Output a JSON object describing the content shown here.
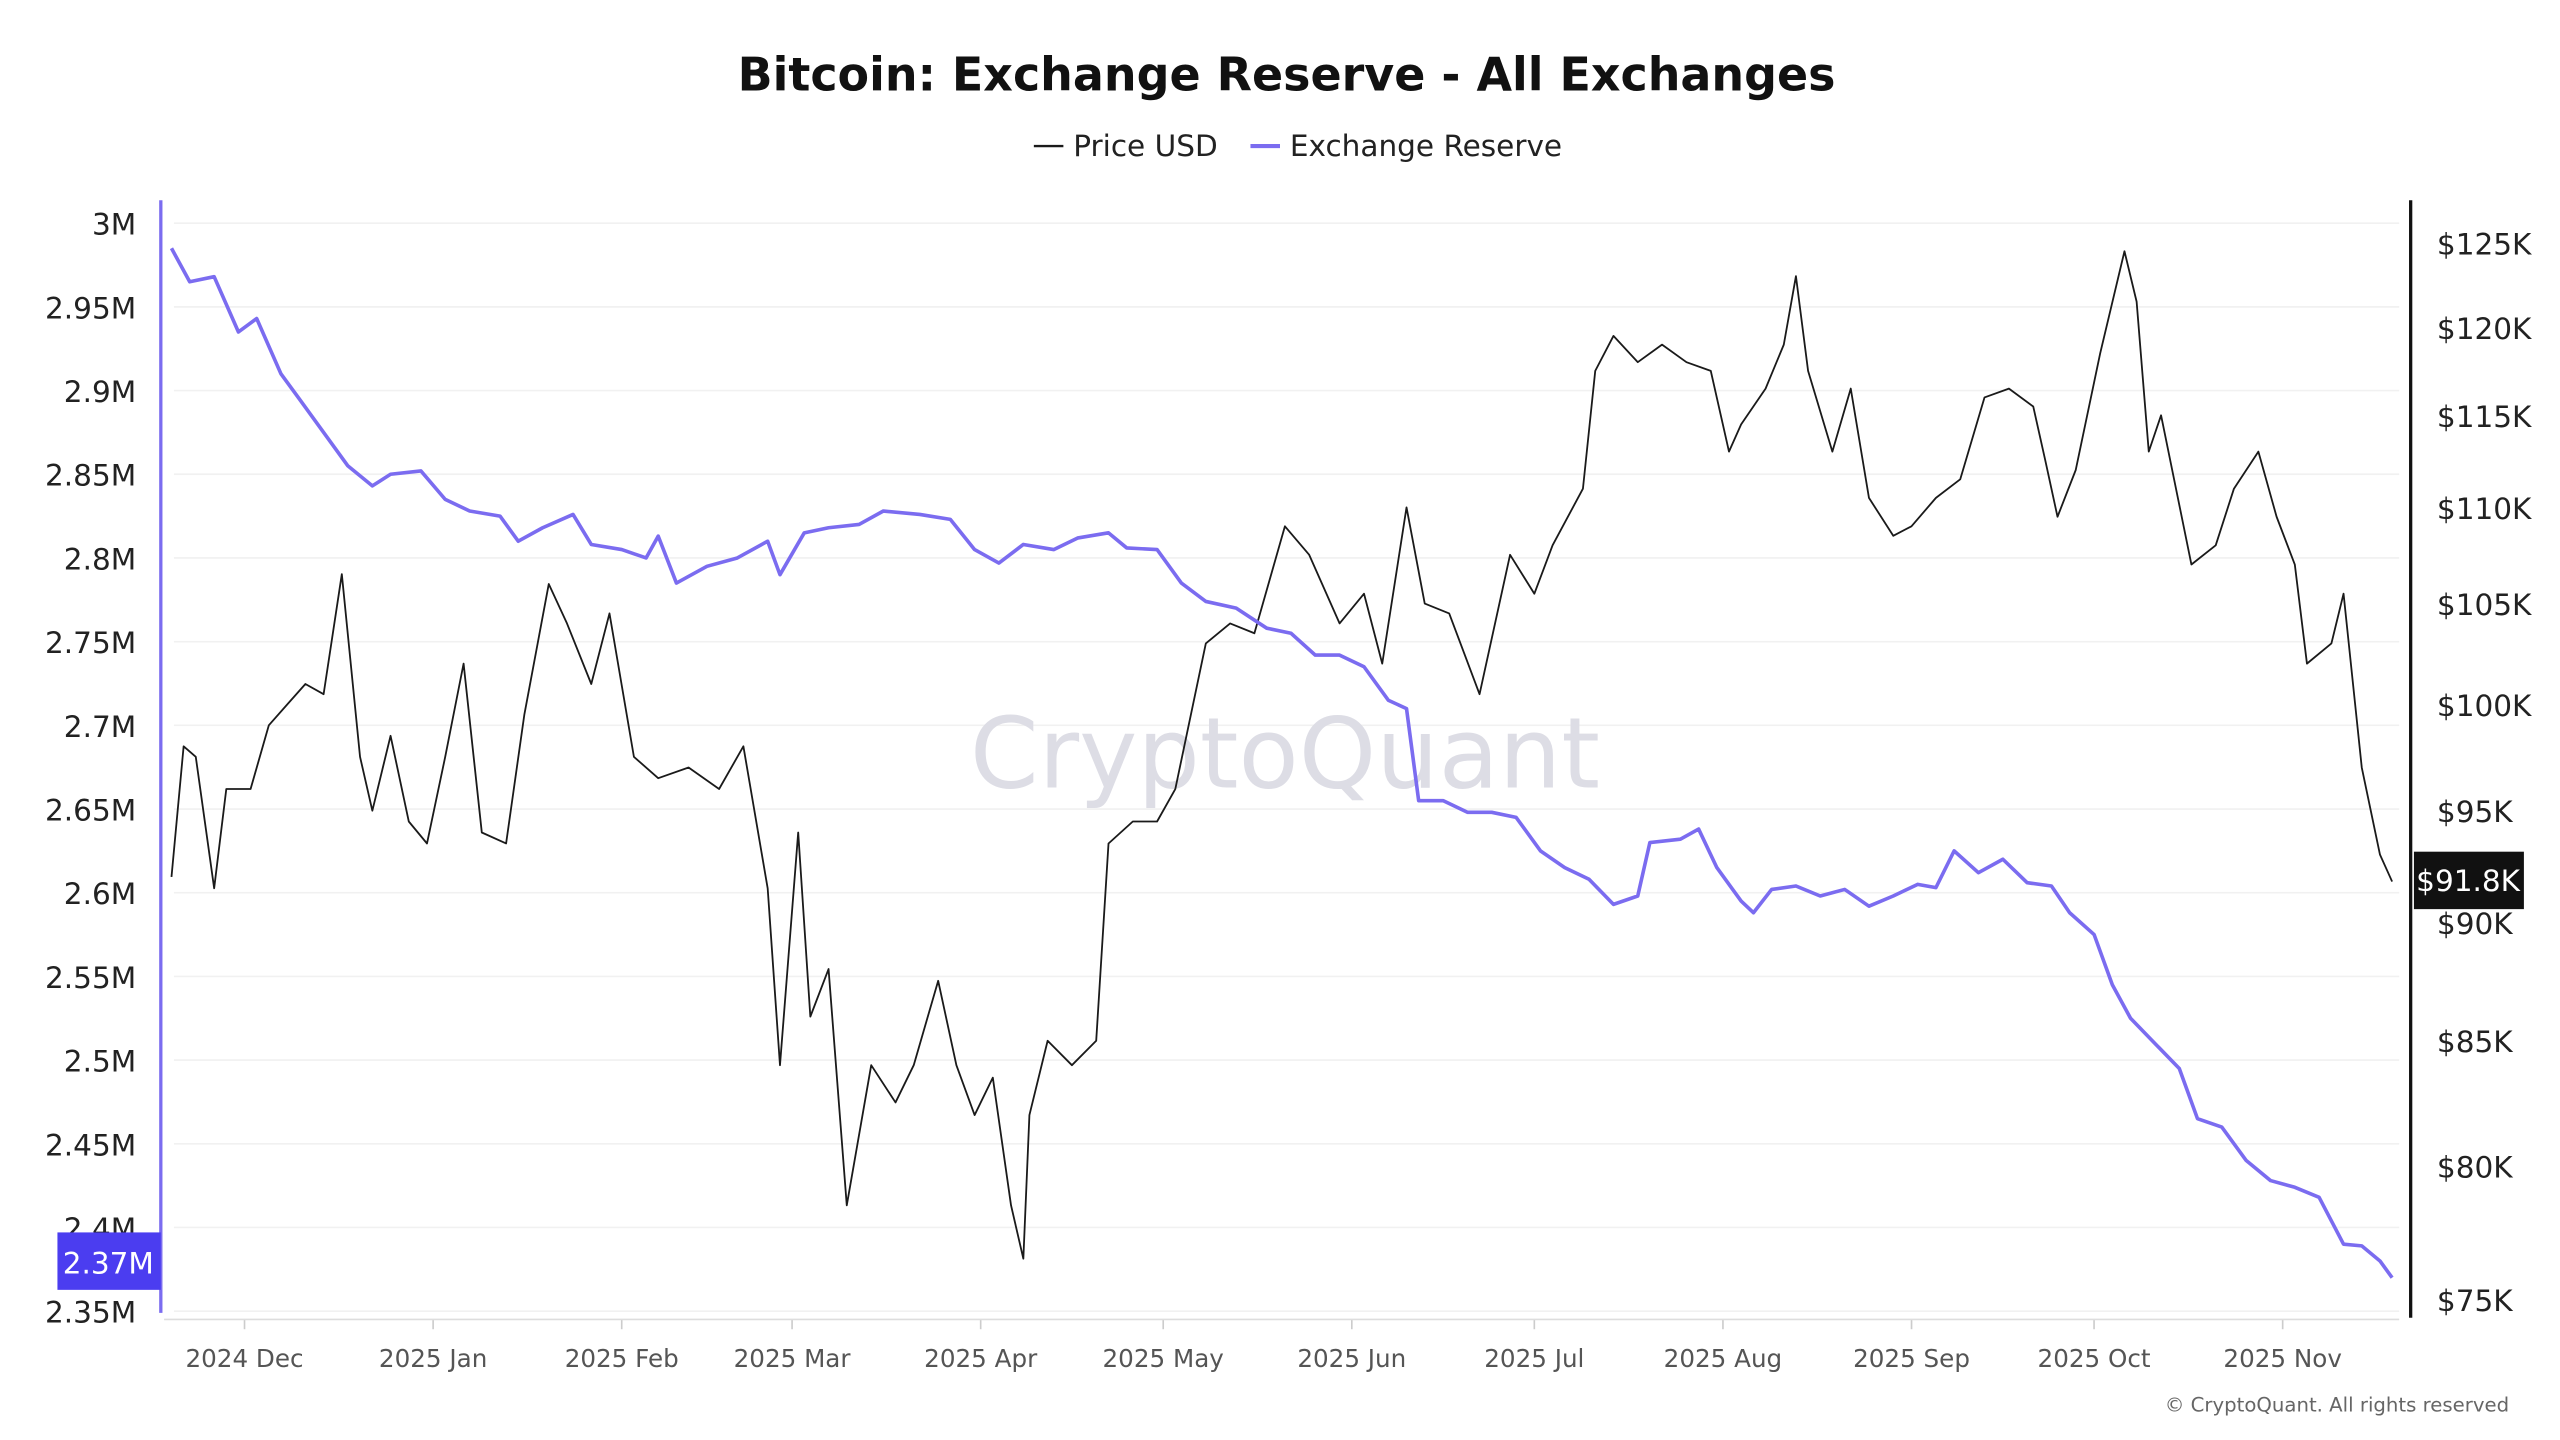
{
  "chart_data": {
    "type": "line",
    "title": "Bitcoin: Exchange Reserve - All Exchanges",
    "legend": {
      "placement": "top-center",
      "entries": [
        "Price USD",
        "Exchange Reserve"
      ]
    },
    "grid": true,
    "x_ticks": [
      "2024-12-01",
      "2025-01-01",
      "2025-02-01",
      "2025-03-01",
      "2025-04-01",
      "2025-05-01",
      "2025-06-01",
      "2025-07-01",
      "2025-08-01",
      "2025-09-01",
      "2025-10-01",
      "2025-11-01"
    ],
    "x_tick_labels": [
      "2024 Dec",
      "2025 Jan",
      "2025 Feb",
      "2025 Mar",
      "2025 Apr",
      "2025 May",
      "2025 Jun",
      "2025 Jul",
      "2025 Aug",
      "2025 Sep",
      "2025 Oct",
      "2025 Nov"
    ],
    "xlim": [
      "2024-11-19",
      "2025-11-19"
    ],
    "left_axis": {
      "ylim": [
        2.35,
        3.0
      ],
      "unit": "M",
      "tick_labels": [
        "3M",
        "2.95M",
        "2.9M",
        "2.85M",
        "2.8M",
        "2.75M",
        "2.7M",
        "2.65M",
        "2.6M",
        "2.55M",
        "2.5M",
        "2.45M",
        "2.4M",
        "2.35M"
      ],
      "ticks": [
        3.0,
        2.95,
        2.9,
        2.85,
        2.8,
        2.75,
        2.7,
        2.65,
        2.6,
        2.55,
        2.5,
        2.45,
        2.4,
        2.35
      ],
      "current_label": "2.37M"
    },
    "right_axis": {
      "scale": "log",
      "ylim": [
        75,
        125
      ],
      "unit": "K USD",
      "tick_labels": [
        "$125K",
        "$120K",
        "$115K",
        "$110K",
        "$105K",
        "$100K",
        "$95K",
        "$90K",
        "$85K",
        "$80K",
        "$75K"
      ],
      "ticks": [
        125,
        120,
        115,
        110,
        105,
        100,
        95,
        90,
        85,
        80,
        75
      ],
      "current_label": "$91.8K"
    },
    "series": [
      {
        "name": "Price USD",
        "axis": "right",
        "color": "#1a1a1a",
        "points": [
          [
            "2024-11-19",
            92
          ],
          [
            "2024-11-21",
            98
          ],
          [
            "2024-11-23",
            97.5
          ],
          [
            "2024-11-26",
            91.5
          ],
          [
            "2024-11-28",
            96
          ],
          [
            "2024-12-02",
            96
          ],
          [
            "2024-12-05",
            99
          ],
          [
            "2024-12-08",
            100
          ],
          [
            "2024-12-11",
            101
          ],
          [
            "2024-12-14",
            100.5
          ],
          [
            "2024-12-17",
            106.5
          ],
          [
            "2024-12-20",
            97.5
          ],
          [
            "2024-12-22",
            95
          ],
          [
            "2024-12-25",
            98.5
          ],
          [
            "2024-12-28",
            94.5
          ],
          [
            "2024-12-31",
            93.5
          ],
          [
            "2025-01-03",
            97.5
          ],
          [
            "2025-01-06",
            102
          ],
          [
            "2025-01-09",
            94
          ],
          [
            "2025-01-13",
            93.5
          ],
          [
            "2025-01-16",
            99.5
          ],
          [
            "2025-01-20",
            106
          ],
          [
            "2025-01-23",
            104
          ],
          [
            "2025-01-27",
            101
          ],
          [
            "2025-01-30",
            104.5
          ],
          [
            "2025-02-03",
            97.5
          ],
          [
            "2025-02-07",
            96.5
          ],
          [
            "2025-02-12",
            97
          ],
          [
            "2025-02-17",
            96
          ],
          [
            "2025-02-21",
            98
          ],
          [
            "2025-02-25",
            91.5
          ],
          [
            "2025-02-27",
            84
          ],
          [
            "2025-03-02",
            94
          ],
          [
            "2025-03-04",
            86
          ],
          [
            "2025-03-07",
            88
          ],
          [
            "2025-03-10",
            78.5
          ],
          [
            "2025-03-14",
            84
          ],
          [
            "2025-03-18",
            82.5
          ],
          [
            "2025-03-21",
            84
          ],
          [
            "2025-03-25",
            87.5
          ],
          [
            "2025-03-28",
            84
          ],
          [
            "2025-03-31",
            82
          ],
          [
            "2025-04-03",
            83.5
          ],
          [
            "2025-04-06",
            78.5
          ],
          [
            "2025-04-08",
            76.5
          ],
          [
            "2025-04-09",
            82
          ],
          [
            "2025-04-12",
            85
          ],
          [
            "2025-04-16",
            84
          ],
          [
            "2025-04-20",
            85
          ],
          [
            "2025-04-22",
            93.5
          ],
          [
            "2025-04-26",
            94.5
          ],
          [
            "2025-04-30",
            94.5
          ],
          [
            "2025-05-03",
            96
          ],
          [
            "2025-05-08",
            103
          ],
          [
            "2025-05-12",
            104
          ],
          [
            "2025-05-16",
            103.5
          ],
          [
            "2025-05-21",
            109
          ],
          [
            "2025-05-25",
            107.5
          ],
          [
            "2025-05-30",
            104
          ],
          [
            "2025-06-03",
            105.5
          ],
          [
            "2025-06-06",
            102
          ],
          [
            "2025-06-10",
            110
          ],
          [
            "2025-06-13",
            105
          ],
          [
            "2025-06-17",
            104.5
          ],
          [
            "2025-06-22",
            100.5
          ],
          [
            "2025-06-27",
            107.5
          ],
          [
            "2025-07-01",
            105.5
          ],
          [
            "2025-07-04",
            108
          ],
          [
            "2025-07-09",
            111
          ],
          [
            "2025-07-11",
            117.5
          ],
          [
            "2025-07-14",
            119.5
          ],
          [
            "2025-07-18",
            118
          ],
          [
            "2025-07-22",
            119
          ],
          [
            "2025-07-26",
            118
          ],
          [
            "2025-07-30",
            117.5
          ],
          [
            "2025-08-02",
            113
          ],
          [
            "2025-08-04",
            114.5
          ],
          [
            "2025-08-08",
            116.5
          ],
          [
            "2025-08-11",
            119
          ],
          [
            "2025-08-13",
            123
          ],
          [
            "2025-08-15",
            117.5
          ],
          [
            "2025-08-19",
            113
          ],
          [
            "2025-08-22",
            116.5
          ],
          [
            "2025-08-25",
            110.5
          ],
          [
            "2025-08-29",
            108.5
          ],
          [
            "2025-09-01",
            109
          ],
          [
            "2025-09-05",
            110.5
          ],
          [
            "2025-09-09",
            111.5
          ],
          [
            "2025-09-13",
            116
          ],
          [
            "2025-09-17",
            116.5
          ],
          [
            "2025-09-21",
            115.5
          ],
          [
            "2025-09-23",
            112.5
          ],
          [
            "2025-09-25",
            109.5
          ],
          [
            "2025-09-28",
            112
          ],
          [
            "2025-10-02",
            118.5
          ],
          [
            "2025-10-06",
            124.5
          ],
          [
            "2025-10-08",
            121.5
          ],
          [
            "2025-10-10",
            113
          ],
          [
            "2025-10-12",
            115
          ],
          [
            "2025-10-17",
            107
          ],
          [
            "2025-10-21",
            108
          ],
          [
            "2025-10-24",
            111
          ],
          [
            "2025-10-28",
            113
          ],
          [
            "2025-10-31",
            109.5
          ],
          [
            "2025-11-03",
            107
          ],
          [
            "2025-11-05",
            102
          ],
          [
            "2025-11-09",
            103
          ],
          [
            "2025-11-11",
            105.5
          ],
          [
            "2025-11-14",
            97
          ],
          [
            "2025-11-17",
            93
          ],
          [
            "2025-11-19",
            91.8
          ]
        ]
      },
      {
        "name": "Exchange Reserve",
        "axis": "left",
        "color": "#7b6cf0",
        "points": [
          [
            "2024-11-19",
            2.985
          ],
          [
            "2024-11-22",
            2.965
          ],
          [
            "2024-11-26",
            2.968
          ],
          [
            "2024-11-30",
            2.935
          ],
          [
            "2024-12-03",
            2.943
          ],
          [
            "2024-12-07",
            2.91
          ],
          [
            "2024-12-10",
            2.895
          ],
          [
            "2024-12-14",
            2.875
          ],
          [
            "2024-12-18",
            2.855
          ],
          [
            "2024-12-22",
            2.843
          ],
          [
            "2024-12-25",
            2.85
          ],
          [
            "2024-12-30",
            2.852
          ],
          [
            "2025-01-03",
            2.835
          ],
          [
            "2025-01-07",
            2.828
          ],
          [
            "2025-01-12",
            2.825
          ],
          [
            "2025-01-15",
            2.81
          ],
          [
            "2025-01-19",
            2.818
          ],
          [
            "2025-01-24",
            2.826
          ],
          [
            "2025-01-27",
            2.808
          ],
          [
            "2025-02-01",
            2.805
          ],
          [
            "2025-02-05",
            2.8
          ],
          [
            "2025-02-07",
            2.813
          ],
          [
            "2025-02-10",
            2.785
          ],
          [
            "2025-02-15",
            2.795
          ],
          [
            "2025-02-20",
            2.8
          ],
          [
            "2025-02-25",
            2.81
          ],
          [
            "2025-02-27",
            2.79
          ],
          [
            "2025-03-03",
            2.815
          ],
          [
            "2025-03-07",
            2.818
          ],
          [
            "2025-03-12",
            2.82
          ],
          [
            "2025-03-16",
            2.828
          ],
          [
            "2025-03-22",
            2.826
          ],
          [
            "2025-03-27",
            2.823
          ],
          [
            "2025-03-31",
            2.805
          ],
          [
            "2025-04-04",
            2.797
          ],
          [
            "2025-04-08",
            2.808
          ],
          [
            "2025-04-13",
            2.805
          ],
          [
            "2025-04-17",
            2.812
          ],
          [
            "2025-04-22",
            2.815
          ],
          [
            "2025-04-25",
            2.806
          ],
          [
            "2025-04-30",
            2.805
          ],
          [
            "2025-05-04",
            2.785
          ],
          [
            "2025-05-08",
            2.774
          ],
          [
            "2025-05-13",
            2.77
          ],
          [
            "2025-05-18",
            2.758
          ],
          [
            "2025-05-22",
            2.755
          ],
          [
            "2025-05-26",
            2.742
          ],
          [
            "2025-05-30",
            2.742
          ],
          [
            "2025-06-03",
            2.735
          ],
          [
            "2025-06-07",
            2.715
          ],
          [
            "2025-06-10",
            2.71
          ],
          [
            "2025-06-12",
            2.655
          ],
          [
            "2025-06-16",
            2.655
          ],
          [
            "2025-06-20",
            2.648
          ],
          [
            "2025-06-24",
            2.648
          ],
          [
            "2025-06-28",
            2.645
          ],
          [
            "2025-07-02",
            2.625
          ],
          [
            "2025-07-06",
            2.615
          ],
          [
            "2025-07-10",
            2.608
          ],
          [
            "2025-07-14",
            2.593
          ],
          [
            "2025-07-18",
            2.598
          ],
          [
            "2025-07-20",
            2.63
          ],
          [
            "2025-07-25",
            2.632
          ],
          [
            "2025-07-28",
            2.638
          ],
          [
            "2025-07-31",
            2.615
          ],
          [
            "2025-08-04",
            2.595
          ],
          [
            "2025-08-06",
            2.588
          ],
          [
            "2025-08-09",
            2.602
          ],
          [
            "2025-08-13",
            2.604
          ],
          [
            "2025-08-17",
            2.598
          ],
          [
            "2025-08-21",
            2.602
          ],
          [
            "2025-08-25",
            2.592
          ],
          [
            "2025-08-29",
            2.598
          ],
          [
            "2025-09-02",
            2.605
          ],
          [
            "2025-09-05",
            2.603
          ],
          [
            "2025-09-08",
            2.625
          ],
          [
            "2025-09-12",
            2.612
          ],
          [
            "2025-09-16",
            2.62
          ],
          [
            "2025-09-20",
            2.606
          ],
          [
            "2025-09-24",
            2.604
          ],
          [
            "2025-09-27",
            2.588
          ],
          [
            "2025-10-01",
            2.575
          ],
          [
            "2025-10-04",
            2.545
          ],
          [
            "2025-10-07",
            2.525
          ],
          [
            "2025-10-11",
            2.51
          ],
          [
            "2025-10-15",
            2.495
          ],
          [
            "2025-10-18",
            2.465
          ],
          [
            "2025-10-22",
            2.46
          ],
          [
            "2025-10-26",
            2.44
          ],
          [
            "2025-10-30",
            2.428
          ],
          [
            "2025-11-03",
            2.424
          ],
          [
            "2025-11-07",
            2.418
          ],
          [
            "2025-11-11",
            2.39
          ],
          [
            "2025-11-14",
            2.389
          ],
          [
            "2025-11-17",
            2.38
          ],
          [
            "2025-11-19",
            2.37
          ]
        ]
      }
    ],
    "watermark": "CryptoQuant",
    "copyright": "© CryptoQuant. All rights reserved"
  }
}
